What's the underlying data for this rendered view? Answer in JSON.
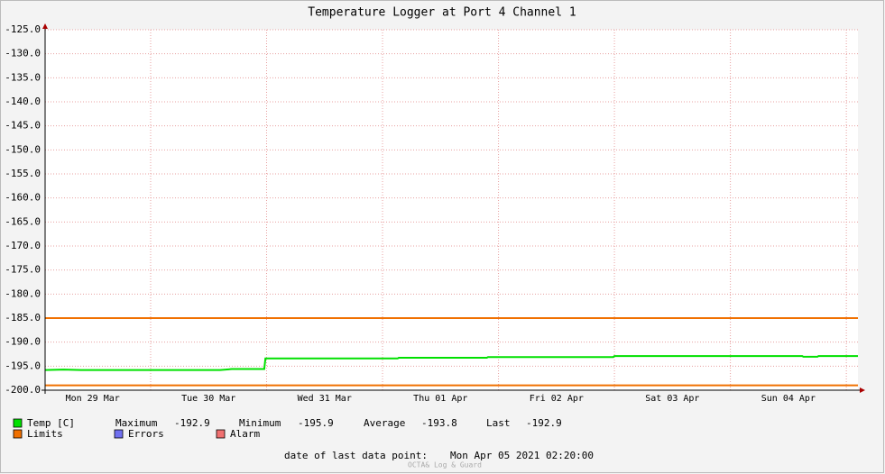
{
  "chart_data": {
    "type": "line",
    "title": "Temperature Logger at Port 4 Channel 1",
    "xlim": [
      0.09,
      7.1
    ],
    "xticks": [
      {
        "value": 0.5,
        "label": "Mon 29 Mar"
      },
      {
        "value": 1.5,
        "label": "Tue 30 Mar"
      },
      {
        "value": 2.5,
        "label": "Wed 31 Mar"
      },
      {
        "value": 3.5,
        "label": "Thu 01 Apr"
      },
      {
        "value": 4.5,
        "label": "Fri 02 Apr"
      },
      {
        "value": 5.5,
        "label": "Sat 03 Apr"
      },
      {
        "value": 6.5,
        "label": "Sun 04 Apr"
      }
    ],
    "ylim": [
      -200,
      -125
    ],
    "yticks": [
      {
        "value": -125,
        "label": "-125.0"
      },
      {
        "value": -130,
        "label": "-130.0"
      },
      {
        "value": -135,
        "label": "-135.0"
      },
      {
        "value": -140,
        "label": "-140.0"
      },
      {
        "value": -145,
        "label": "-145.0"
      },
      {
        "value": -150,
        "label": "-150.0"
      },
      {
        "value": -155,
        "label": "-155.0"
      },
      {
        "value": -160,
        "label": "-160.0"
      },
      {
        "value": -165,
        "label": "-165.0"
      },
      {
        "value": -170,
        "label": "-170.0"
      },
      {
        "value": -175,
        "label": "-175.0"
      },
      {
        "value": -180,
        "label": "-180.0"
      },
      {
        "value": -185,
        "label": "-185.0"
      },
      {
        "value": -190,
        "label": "-190.0"
      },
      {
        "value": -195,
        "label": "-195.0"
      },
      {
        "value": -200,
        "label": "-200.0"
      }
    ],
    "grid": true,
    "series": [
      {
        "name": "Temp [C]",
        "color": "#00e000",
        "x": [
          0.09,
          0.25,
          0.4,
          1.6,
          1.7,
          1.98,
          1.99,
          3.13,
          3.14,
          3.9,
          3.91,
          4.99,
          5.0,
          6.62,
          6.63,
          6.75,
          6.76,
          7.1
        ],
        "values": [
          -195.8,
          -195.7,
          -195.8,
          -195.8,
          -195.6,
          -195.6,
          -193.4,
          -193.4,
          -193.25,
          -193.25,
          -193.1,
          -193.1,
          -192.9,
          -192.9,
          -193.05,
          -193.05,
          -192.9,
          -192.9
        ]
      }
    ],
    "limits": {
      "name": "Limits",
      "color": "#f07000",
      "values": [
        -185,
        -199
      ]
    },
    "legend_extra": [
      {
        "name": "Errors",
        "color": "#7070f0"
      },
      {
        "name": "Alarm",
        "color": "#f07070"
      }
    ],
    "stats": [
      {
        "label": "Maximum",
        "value": "-192.9"
      },
      {
        "label": "Minimum",
        "value": "-195.9"
      },
      {
        "label": "Average",
        "value": "-193.8"
      },
      {
        "label": "Last",
        "value": "-192.9"
      }
    ],
    "footer_label": "date of last data point:",
    "footer_value": "Mon Apr 05 2021 02:20:00",
    "watermark": "OCTA& Log & Guard"
  }
}
